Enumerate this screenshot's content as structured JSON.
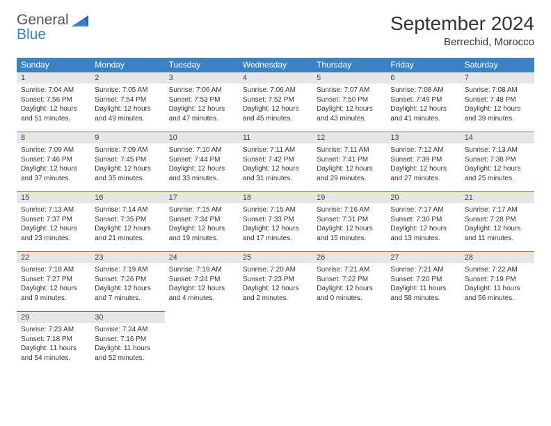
{
  "logo": {
    "line1": "General",
    "line2": "Blue"
  },
  "title": "September 2024",
  "location": "Berrechid, Morocco",
  "colors": {
    "header_bg": "#3b82c4",
    "header_fg": "#ffffff",
    "daynum_bg": "#e6e6e6",
    "cell_border_top": "#3b82c4",
    "text": "#333333",
    "logo_gray": "#555559",
    "logo_blue": "#3b82c4",
    "background": "#ffffff"
  },
  "typography": {
    "title_fontsize": 28,
    "location_fontsize": 15,
    "dayheader_fontsize": 12,
    "daynum_fontsize": 11,
    "body_fontsize": 10,
    "logo_fontsize": 21
  },
  "day_headers": [
    "Sunday",
    "Monday",
    "Tuesday",
    "Wednesday",
    "Thursday",
    "Friday",
    "Saturday"
  ],
  "weeks": [
    [
      {
        "n": "1",
        "sunrise": "Sunrise: 7:04 AM",
        "sunset": "Sunset: 7:56 PM",
        "daylight": "Daylight: 12 hours and 51 minutes."
      },
      {
        "n": "2",
        "sunrise": "Sunrise: 7:05 AM",
        "sunset": "Sunset: 7:54 PM",
        "daylight": "Daylight: 12 hours and 49 minutes."
      },
      {
        "n": "3",
        "sunrise": "Sunrise: 7:06 AM",
        "sunset": "Sunset: 7:53 PM",
        "daylight": "Daylight: 12 hours and 47 minutes."
      },
      {
        "n": "4",
        "sunrise": "Sunrise: 7:06 AM",
        "sunset": "Sunset: 7:52 PM",
        "daylight": "Daylight: 12 hours and 45 minutes."
      },
      {
        "n": "5",
        "sunrise": "Sunrise: 7:07 AM",
        "sunset": "Sunset: 7:50 PM",
        "daylight": "Daylight: 12 hours and 43 minutes."
      },
      {
        "n": "6",
        "sunrise": "Sunrise: 7:08 AM",
        "sunset": "Sunset: 7:49 PM",
        "daylight": "Daylight: 12 hours and 41 minutes."
      },
      {
        "n": "7",
        "sunrise": "Sunrise: 7:08 AM",
        "sunset": "Sunset: 7:48 PM",
        "daylight": "Daylight: 12 hours and 39 minutes."
      }
    ],
    [
      {
        "n": "8",
        "sunrise": "Sunrise: 7:09 AM",
        "sunset": "Sunset: 7:46 PM",
        "daylight": "Daylight: 12 hours and 37 minutes."
      },
      {
        "n": "9",
        "sunrise": "Sunrise: 7:09 AM",
        "sunset": "Sunset: 7:45 PM",
        "daylight": "Daylight: 12 hours and 35 minutes."
      },
      {
        "n": "10",
        "sunrise": "Sunrise: 7:10 AM",
        "sunset": "Sunset: 7:44 PM",
        "daylight": "Daylight: 12 hours and 33 minutes."
      },
      {
        "n": "11",
        "sunrise": "Sunrise: 7:11 AM",
        "sunset": "Sunset: 7:42 PM",
        "daylight": "Daylight: 12 hours and 31 minutes."
      },
      {
        "n": "12",
        "sunrise": "Sunrise: 7:11 AM",
        "sunset": "Sunset: 7:41 PM",
        "daylight": "Daylight: 12 hours and 29 minutes."
      },
      {
        "n": "13",
        "sunrise": "Sunrise: 7:12 AM",
        "sunset": "Sunset: 7:39 PM",
        "daylight": "Daylight: 12 hours and 27 minutes."
      },
      {
        "n": "14",
        "sunrise": "Sunrise: 7:13 AM",
        "sunset": "Sunset: 7:38 PM",
        "daylight": "Daylight: 12 hours and 25 minutes."
      }
    ],
    [
      {
        "n": "15",
        "sunrise": "Sunrise: 7:13 AM",
        "sunset": "Sunset: 7:37 PM",
        "daylight": "Daylight: 12 hours and 23 minutes."
      },
      {
        "n": "16",
        "sunrise": "Sunrise: 7:14 AM",
        "sunset": "Sunset: 7:35 PM",
        "daylight": "Daylight: 12 hours and 21 minutes."
      },
      {
        "n": "17",
        "sunrise": "Sunrise: 7:15 AM",
        "sunset": "Sunset: 7:34 PM",
        "daylight": "Daylight: 12 hours and 19 minutes."
      },
      {
        "n": "18",
        "sunrise": "Sunrise: 7:15 AM",
        "sunset": "Sunset: 7:33 PM",
        "daylight": "Daylight: 12 hours and 17 minutes."
      },
      {
        "n": "19",
        "sunrise": "Sunrise: 7:16 AM",
        "sunset": "Sunset: 7:31 PM",
        "daylight": "Daylight: 12 hours and 15 minutes."
      },
      {
        "n": "20",
        "sunrise": "Sunrise: 7:17 AM",
        "sunset": "Sunset: 7:30 PM",
        "daylight": "Daylight: 12 hours and 13 minutes."
      },
      {
        "n": "21",
        "sunrise": "Sunrise: 7:17 AM",
        "sunset": "Sunset: 7:28 PM",
        "daylight": "Daylight: 12 hours and 11 minutes."
      }
    ],
    [
      {
        "n": "22",
        "sunrise": "Sunrise: 7:18 AM",
        "sunset": "Sunset: 7:27 PM",
        "daylight": "Daylight: 12 hours and 9 minutes."
      },
      {
        "n": "23",
        "sunrise": "Sunrise: 7:19 AM",
        "sunset": "Sunset: 7:26 PM",
        "daylight": "Daylight: 12 hours and 7 minutes."
      },
      {
        "n": "24",
        "sunrise": "Sunrise: 7:19 AM",
        "sunset": "Sunset: 7:24 PM",
        "daylight": "Daylight: 12 hours and 4 minutes."
      },
      {
        "n": "25",
        "sunrise": "Sunrise: 7:20 AM",
        "sunset": "Sunset: 7:23 PM",
        "daylight": "Daylight: 12 hours and 2 minutes."
      },
      {
        "n": "26",
        "sunrise": "Sunrise: 7:21 AM",
        "sunset": "Sunset: 7:22 PM",
        "daylight": "Daylight: 12 hours and 0 minutes."
      },
      {
        "n": "27",
        "sunrise": "Sunrise: 7:21 AM",
        "sunset": "Sunset: 7:20 PM",
        "daylight": "Daylight: 11 hours and 58 minutes."
      },
      {
        "n": "28",
        "sunrise": "Sunrise: 7:22 AM",
        "sunset": "Sunset: 7:19 PM",
        "daylight": "Daylight: 11 hours and 56 minutes."
      }
    ],
    [
      {
        "n": "29",
        "sunrise": "Sunrise: 7:23 AM",
        "sunset": "Sunset: 7:18 PM",
        "daylight": "Daylight: 11 hours and 54 minutes."
      },
      {
        "n": "30",
        "sunrise": "Sunrise: 7:24 AM",
        "sunset": "Sunset: 7:16 PM",
        "daylight": "Daylight: 11 hours and 52 minutes."
      },
      null,
      null,
      null,
      null,
      null
    ]
  ]
}
